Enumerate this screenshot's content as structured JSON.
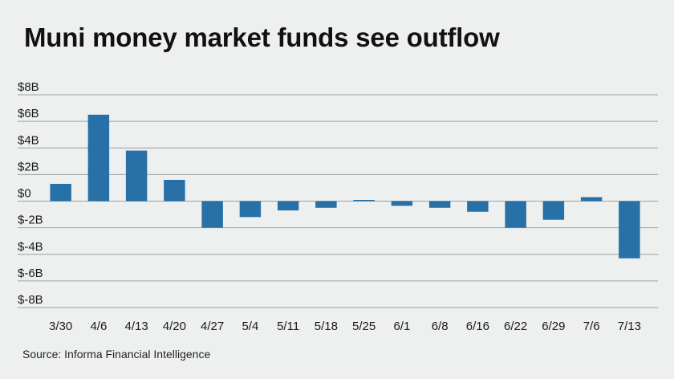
{
  "title": "Muni money market funds see outflow",
  "source": "Source: Informa Financial Intelligence",
  "colors": {
    "bar": "#2770a8",
    "grid": "#9aa0a2",
    "background": "#eef0ef"
  },
  "chart_data": {
    "type": "bar",
    "title": "Muni money market funds see outflow",
    "xlabel": "",
    "ylabel": "",
    "categories": [
      "3/30",
      "4/6",
      "4/13",
      "4/20",
      "4/27",
      "5/4",
      "5/11",
      "5/18",
      "5/25",
      "6/1",
      "6/8",
      "6/16",
      "6/22",
      "6/29",
      "7/6",
      "7/13"
    ],
    "values": [
      1.3,
      6.5,
      3.8,
      1.6,
      -2.0,
      -1.2,
      -0.7,
      -0.5,
      0.05,
      -0.35,
      -0.5,
      -0.8,
      -2.0,
      -1.4,
      0.3,
      -4.3
    ],
    "y_tick_values": [
      8,
      6,
      4,
      2,
      0,
      -2,
      -4,
      -6,
      -8
    ],
    "y_tick_labels": [
      "$8B",
      "$6B",
      "$4B",
      "$2B",
      "$0",
      "$-2B",
      "$-4B",
      "$-6B",
      "$-8B"
    ],
    "ylim": [
      -8,
      8
    ],
    "grid": true,
    "legend": "none"
  }
}
